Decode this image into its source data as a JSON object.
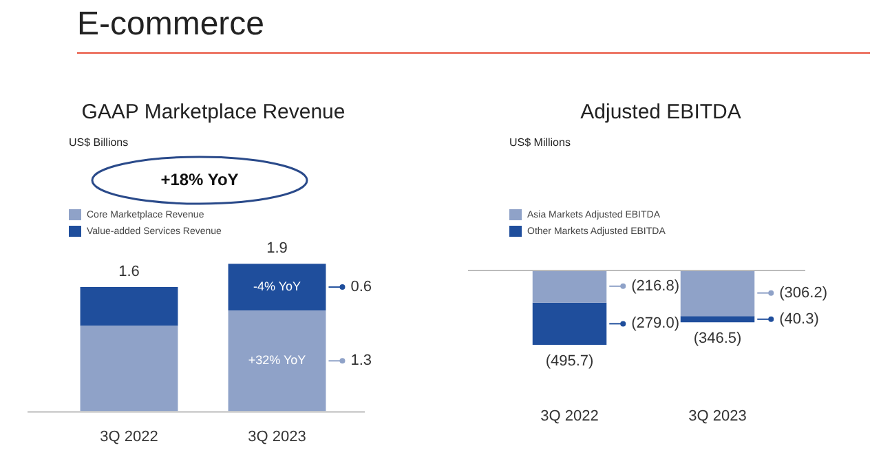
{
  "chart_data": [
    {
      "type": "other",
      "title": "E-commerce"
    },
    {
      "type": "bar",
      "title": "GAAP Marketplace Revenue",
      "subtitle": "US$ Billions",
      "categories": [
        "3Q 2022",
        "3Q 2023"
      ],
      "stacked": true,
      "tick_labels": "x",
      "legend": "top left",
      "series": [
        {
          "name": "Core Marketplace Revenue",
          "color": "#8fa2c8",
          "values": [
            1.1,
            1.3
          ],
          "value_labels": [
            null,
            "1.3"
          ]
        },
        {
          "name": "Value-added Services Revenue",
          "color": "#1f4e9c",
          "values": [
            0.5,
            0.6
          ],
          "value_labels": [
            null,
            "0.6"
          ]
        }
      ],
      "totals": [
        "1.6",
        "1.9"
      ],
      "annotations": [
        "+18% YoY",
        "-4% YoY",
        "+32% YoY"
      ]
    },
    {
      "type": "bar",
      "title": "Adjusted EBITDA",
      "subtitle": "US$ Millions",
      "categories": [
        "3Q 2022",
        "3Q 2023"
      ],
      "stacked": true,
      "tick_labels": "x",
      "legend": "top left",
      "series": [
        {
          "name": "Asia Markets Adjusted EBITDA",
          "color": "#8fa2c8",
          "values": [
            -216.8,
            -306.2
          ],
          "value_labels": [
            "(216.8)",
            "(306.2)"
          ]
        },
        {
          "name": "Other Markets Adjusted EBITDA",
          "color": "#1f4e9c",
          "values": [
            -279.0,
            -40.3
          ],
          "value_labels": [
            "(279.0)",
            "(40.3)"
          ]
        }
      ],
      "totals": [
        "(495.7)",
        "(346.5)"
      ]
    }
  ]
}
